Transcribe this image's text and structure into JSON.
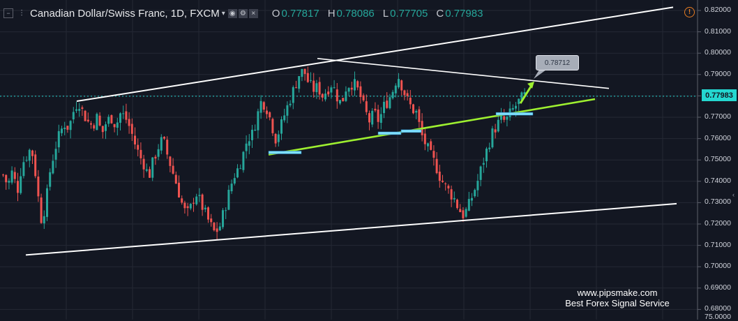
{
  "header": {
    "collapse_icon": "minus-square-icon",
    "compare_icon": "compare-lines-icon",
    "symbol": "Canadian Dollar/Swiss Franc, 1D, FXCM",
    "caret": "▾",
    "indicator_icons": [
      "eye-icon",
      "settings-icon",
      "close-icon"
    ],
    "ohlc": {
      "open_label": "O",
      "open": "0.77817",
      "high_label": "H",
      "high": "0.78086",
      "low_label": "L",
      "low": "0.77705",
      "close_label": "C",
      "close": "0.77983"
    },
    "warning_icon": "exclamation-circle-icon",
    "warning_glyph": "!"
  },
  "price_axis": {
    "labels": [
      "0.82000",
      "0.81000",
      "0.80000",
      "0.79000",
      "0.78000",
      "0.77000",
      "0.76000",
      "0.75000",
      "0.74000",
      "0.73000",
      "0.72000",
      "0.71000",
      "0.70000",
      "0.69000",
      "0.68000"
    ],
    "last_price": "0.77983",
    "bottom_label": "75.0000"
  },
  "annotations": {
    "target_callout": "0.78712"
  },
  "watermark": {
    "line1": "www.pipsmake.com",
    "line2": "Best Forex Signal Service"
  },
  "colors": {
    "background": "#131722",
    "up_candle": "#26a69a",
    "down_candle": "#ef5350",
    "trendline": "#ffffff",
    "green_line": "#9ef030",
    "support_box": "#7fdfff",
    "last_price": "#24d7d0"
  },
  "chart_data": {
    "type": "candlestick",
    "instrument": "Canadian Dollar/Swiss Franc, 1D, FXCM",
    "ylim": [
      0.679,
      0.823
    ],
    "close_path": [
      0.743,
      0.738,
      0.745,
      0.735,
      0.748,
      0.752,
      0.756,
      0.742,
      0.722,
      0.728,
      0.745,
      0.755,
      0.762,
      0.767,
      0.765,
      0.773,
      0.778,
      0.772,
      0.768,
      0.766,
      0.77,
      0.762,
      0.768,
      0.77,
      0.766,
      0.772,
      0.77,
      0.765,
      0.758,
      0.752,
      0.748,
      0.742,
      0.75,
      0.756,
      0.76,
      0.752,
      0.745,
      0.738,
      0.73,
      0.724,
      0.728,
      0.735,
      0.73,
      0.725,
      0.72,
      0.716,
      0.718,
      0.726,
      0.734,
      0.742,
      0.746,
      0.752,
      0.76,
      0.762,
      0.77,
      0.778,
      0.775,
      0.768,
      0.76,
      0.765,
      0.772,
      0.778,
      0.784,
      0.79,
      0.792,
      0.786,
      0.783,
      0.784,
      0.78,
      0.783,
      0.786,
      0.78,
      0.776,
      0.784,
      0.786,
      0.785,
      0.78,
      0.773,
      0.768,
      0.772,
      0.768,
      0.775,
      0.778,
      0.783,
      0.79,
      0.784,
      0.778,
      0.774,
      0.772,
      0.762,
      0.757,
      0.752,
      0.748,
      0.742,
      0.738,
      0.735,
      0.732,
      0.727,
      0.724,
      0.728,
      0.734,
      0.74,
      0.748,
      0.755,
      0.762,
      0.766,
      0.769,
      0.768,
      0.772,
      0.775,
      0.778,
      0.78
    ],
    "trendlines": [
      {
        "name": "upper channel",
        "start": [
          0,
          0.777
        ],
        "end": [
          1,
          0.822
        ]
      },
      {
        "name": "lower channel",
        "start": [
          0,
          0.705
        ],
        "end": [
          1,
          0.73
        ]
      },
      {
        "name": "descending resistance",
        "start": [
          0,
          0.797
        ],
        "end": [
          1,
          0.783
        ]
      },
      {
        "name": "rising support",
        "start": [
          0,
          0.7525
        ],
        "end": [
          1,
          0.778
        ]
      }
    ],
    "target": 0.78712
  }
}
